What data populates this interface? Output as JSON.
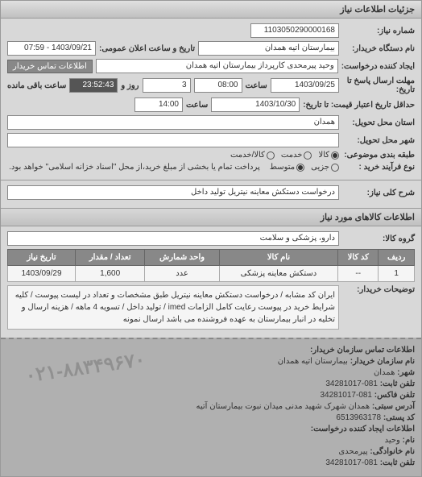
{
  "panel": {
    "title": "جزئیات اطلاعات نیاز"
  },
  "header": {
    "niaz_no_label": "شماره نیاز:",
    "niaz_no": "1103050290000168",
    "device_label": "نام دستگاه خریدار:",
    "device": "بیمارستان اتیه همدان",
    "announce_label": "تاریخ و ساعت اعلان عمومی:",
    "announce": "1403/09/21 - 07:59",
    "creator_label": "ایجاد کننده درخواست:",
    "creator": "وحید پیرمحدی کارپرداز بیمارستان اتیه همدان",
    "contact_btn": "اطلاعات تماس خریدار",
    "deadline_label": "مهلت ارسال پاسخ تا تاریخ:",
    "deadline_date": "1403/09/25",
    "time_label": "ساعت",
    "deadline_time": "08:00",
    "days_val": "3",
    "days_label": "روز و",
    "remain_time": "23:52:43",
    "remain_label": "ساعت باقی مانده",
    "validity_label": "حداقل تاریخ اعتبار قیمت: تا تاریخ:",
    "validity_date": "1403/10/30",
    "validity_time": "14:00",
    "province_label": "استان محل تحویل:",
    "province": "همدان",
    "city_label": "شهر محل تحویل:",
    "city": "",
    "category_label": "طبقه بندی موضوعی:",
    "cat_kala": "کالا",
    "cat_khadamat": "خدمت",
    "cat_both": "کالا/خدمت",
    "process_label": "نوع فرآیند خرید :",
    "proc_jozi": "جزیی",
    "proc_motavasset": "متوسط",
    "proc_note": "پرداخت تمام یا بخشی از مبلغ خرید،از محل \"اسناد خزانه اسلامی\" خواهد بود."
  },
  "niaz": {
    "title_label": "شرح کلی نیاز:",
    "title": "درخواست دستکش معاینه نیتریل تولید داخل"
  },
  "goods": {
    "section_title": "اطلاعات کالاهای مورد نیاز",
    "group_label": "گروه کالا:",
    "group": "دارو، پزشکی و سلامت",
    "columns": [
      "ردیف",
      "کد کالا",
      "نام کالا",
      "واحد شمارش",
      "تعداد / مقدار",
      "تاریخ نیاز"
    ],
    "rows": [
      [
        "1",
        "--",
        "دستکش معاینه پزشکی",
        "عدد",
        "1,600",
        "1403/09/29"
      ]
    ],
    "note_label": "توضیحات خریدار:",
    "note": "ایران کد مشابه / درخواست دستکش معاینه نیتریل طبق مشخصات و تعداد در لیست پیوست / کلیه شرایط خرید در پیوست رعایت کامل الزامات imed / تولید داخل / تسویه 4 ماهه / هزینه ارسال و تخلیه در انبار بیمارستان به عهده فروشنده می باشد ارسال نمونه"
  },
  "contact": {
    "section_title": "اطلاعات تماس سازمان خریدار:",
    "org_label": "نام سازمان خریدار:",
    "org": "بیمارستان اتیه همدان",
    "city_label": "شهر:",
    "city": "همدان",
    "tel_label": "تلفن ثابت:",
    "tel": "081-34281017",
    "fax_label": "تلفن فاکس:",
    "fax": "081-34281017",
    "addr_label": "آدرس سبتی:",
    "addr": "همدان شهرک شهید مدنی میدان نبوت بیمارستان آتیه",
    "post_label": "کد پستی:",
    "post": "6513963178",
    "creator_section": "اطلاعات ایجاد کننده درخواست:",
    "name_label": "نام:",
    "name": "وحید",
    "family_label": "نام خانوادگی:",
    "family": "پیرمحدی",
    "ctel_label": "تلفن ثابت:",
    "ctel": "081-34281017"
  },
  "watermark": "۰۲۱-۸۸۳۴۹۶۷۰"
}
